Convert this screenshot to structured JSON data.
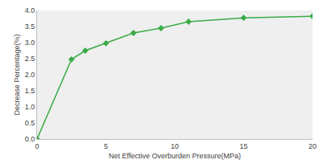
{
  "chart_data": {
    "type": "line",
    "x_label": "Net Effective Overburden Pressure(MPa)",
    "y_label": "Decrease Percentage(%)",
    "x": [
      0,
      2.5,
      3.5,
      5,
      7,
      9,
      11,
      15,
      20
    ],
    "values": [
      0,
      2.48,
      2.75,
      2.98,
      3.3,
      3.45,
      3.65,
      3.77,
      3.82
    ],
    "color": "#3aab47",
    "marker": "diamond",
    "xlim": [
      0,
      20
    ],
    "xticks": [
      0,
      5,
      10,
      15,
      20
    ],
    "ylim": [
      0,
      4
    ],
    "yticks": [
      {
        "value": 0,
        "label": "0.0"
      },
      {
        "value": 0.5,
        "label": "0.5"
      },
      {
        "value": 1,
        "label": "1.0"
      },
      {
        "value": 1.5,
        "label": "1.5"
      },
      {
        "value": 2,
        "label": "2.0"
      },
      {
        "value": 2.5,
        "label": "2.5"
      },
      {
        "value": 3,
        "label": "3.0"
      },
      {
        "value": 3.5,
        "label": "3.5"
      },
      {
        "value": 4,
        "label": "4.0"
      }
    ],
    "grid": false
  }
}
